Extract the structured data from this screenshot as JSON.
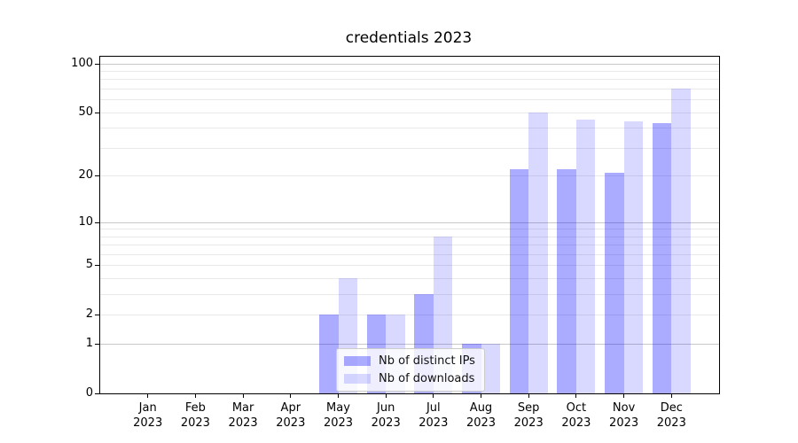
{
  "chart_data": {
    "type": "bar",
    "title": "credentials 2023",
    "categories": [
      "Jan",
      "Feb",
      "Mar",
      "Apr",
      "May",
      "Jun",
      "Jul",
      "Aug",
      "Sep",
      "Oct",
      "Nov",
      "Dec"
    ],
    "year_label": "2023",
    "series": [
      {
        "name": "Nb of distinct IPs",
        "color": "rgba(0,0,255,0.33)",
        "values": [
          0,
          0,
          0,
          0,
          2,
          2,
          3,
          1,
          22,
          22,
          21,
          43
        ]
      },
      {
        "name": "Nb of downloads",
        "color": "rgba(0,0,255,0.15)",
        "values": [
          0,
          0,
          0,
          0,
          4,
          2,
          8,
          1,
          50,
          45,
          44,
          70
        ]
      }
    ],
    "xlabel": "",
    "ylabel": "",
    "yscale": "log1p",
    "ylim": [
      0,
      110
    ],
    "yticks": [
      0,
      1,
      2,
      5,
      10,
      20,
      50,
      100
    ],
    "major_grid_values": [
      1,
      10,
      100
    ],
    "minor_grid_values": [
      2,
      3,
      4,
      5,
      6,
      7,
      8,
      9,
      20,
      30,
      40,
      50,
      60,
      70,
      80,
      90
    ],
    "grid": true,
    "legend_position": "lower-center",
    "colors": {
      "major_grid": "#c8c8c8",
      "minor_grid": "#e9e9e9",
      "spine": "#000000",
      "text": "#000000",
      "legend_border": "#cccccc",
      "legend_bg": "rgba(255,255,255,0.8)"
    }
  }
}
